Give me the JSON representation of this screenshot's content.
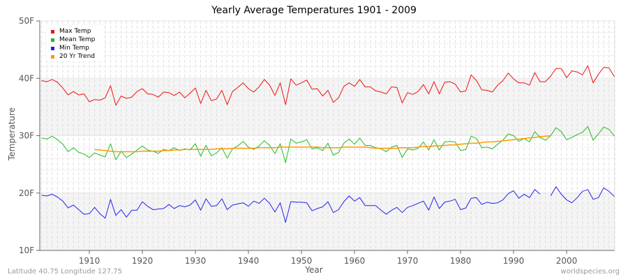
{
  "chart_data": {
    "type": "line",
    "title": "Yearly Average Temperatures 1901 - 2009",
    "xlabel": "Year",
    "ylabel": "Temperature",
    "ylim": [
      10,
      50
    ],
    "xlim": [
      1901,
      2009
    ],
    "y_ticks": [
      "10F",
      "20F",
      "30F",
      "40F",
      "50F"
    ],
    "x_ticks": [
      "1910",
      "1920",
      "1930",
      "1940",
      "1950",
      "1960",
      "1970",
      "1980",
      "1990",
      "2000"
    ],
    "grid": true,
    "legend_position": "top-left",
    "x": [
      1901,
      1902,
      1903,
      1904,
      1905,
      1906,
      1907,
      1908,
      1909,
      1910,
      1911,
      1912,
      1913,
      1914,
      1915,
      1916,
      1917,
      1918,
      1919,
      1920,
      1921,
      1922,
      1923,
      1924,
      1925,
      1926,
      1927,
      1928,
      1929,
      1930,
      1931,
      1932,
      1933,
      1934,
      1935,
      1936,
      1937,
      1938,
      1939,
      1940,
      1941,
      1942,
      1943,
      1944,
      1945,
      1946,
      1947,
      1948,
      1949,
      1950,
      1951,
      1952,
      1953,
      1954,
      1955,
      1956,
      1957,
      1958,
      1959,
      1960,
      1961,
      1962,
      1963,
      1964,
      1965,
      1966,
      1967,
      1968,
      1969,
      1970,
      1971,
      1972,
      1973,
      1974,
      1975,
      1976,
      1977,
      1978,
      1979,
      1980,
      1981,
      1982,
      1983,
      1984,
      1985,
      1986,
      1987,
      1988,
      1989,
      1990,
      1991,
      1992,
      1993,
      1994,
      1995,
      1996,
      1997,
      1998,
      1999,
      2000,
      2001,
      2002,
      2003,
      2004,
      2005,
      2006,
      2007,
      2008,
      2009
    ],
    "series": [
      {
        "name": "Max Temp",
        "color": "#ee1111",
        "values": [
          39.6,
          39.4,
          39.8,
          39.3,
          38.3,
          37.1,
          37.7,
          37.1,
          37.3,
          35.9,
          36.3,
          36.2,
          36.6,
          38.7,
          35.3,
          36.9,
          36.5,
          36.7,
          37.7,
          38.2,
          37.3,
          37.2,
          36.7,
          37.6,
          37.5,
          37.0,
          37.6,
          36.6,
          37.4,
          38.3,
          35.6,
          37.9,
          36.1,
          36.4,
          37.9,
          35.4,
          37.7,
          38.4,
          39.2,
          38.2,
          37.6,
          38.5,
          39.8,
          38.8,
          37.0,
          39.2,
          35.4,
          39.9,
          38.8,
          39.2,
          39.7,
          38.1,
          38.2,
          36.9,
          37.9,
          35.8,
          36.6,
          38.6,
          39.2,
          38.6,
          39.8,
          38.5,
          38.5,
          37.8,
          37.6,
          37.3,
          38.5,
          38.4,
          35.7,
          37.5,
          37.2,
          37.7,
          38.9,
          37.3,
          39.4,
          37.3,
          39.3,
          39.4,
          39.0,
          37.6,
          37.8,
          40.6,
          39.6,
          38.0,
          37.9,
          37.6,
          38.8,
          39.6,
          40.9,
          39.9,
          39.2,
          39.2,
          38.8,
          41.0,
          39.4,
          39.4,
          40.4,
          41.7,
          41.7,
          40.1,
          41.3,
          41.1,
          40.6,
          42.2,
          39.2,
          40.7,
          41.9,
          41.8,
          40.3
        ]
      },
      {
        "name": "Mean Temp",
        "color": "#22bb22",
        "values": [
          29.6,
          29.4,
          29.9,
          29.3,
          28.5,
          27.2,
          27.9,
          27.1,
          26.8,
          26.2,
          27.0,
          26.6,
          26.3,
          28.6,
          25.8,
          27.3,
          26.2,
          26.8,
          27.5,
          28.2,
          27.5,
          27.3,
          26.9,
          27.6,
          27.4,
          27.9,
          27.4,
          27.7,
          27.5,
          28.6,
          26.4,
          28.3,
          26.5,
          27.0,
          27.9,
          26.1,
          27.7,
          28.2,
          29.0,
          28.0,
          27.6,
          28.2,
          29.1,
          28.3,
          26.9,
          28.6,
          25.3,
          29.4,
          28.7,
          28.9,
          29.3,
          27.7,
          27.9,
          27.4,
          28.7,
          26.6,
          27.1,
          28.7,
          29.4,
          28.5,
          29.6,
          28.3,
          28.3,
          27.9,
          27.7,
          27.2,
          28.0,
          28.3,
          26.2,
          27.7,
          27.5,
          27.8,
          28.9,
          27.5,
          29.3,
          27.5,
          28.9,
          29.0,
          28.9,
          27.4,
          27.6,
          29.9,
          29.5,
          27.9,
          28.0,
          27.7,
          28.5,
          29.2,
          30.3,
          30.0,
          29.0,
          29.5,
          28.9,
          30.7,
          29.7,
          29.2,
          30.0,
          31.4,
          30.7,
          29.3,
          29.7,
          30.2,
          30.6,
          31.6,
          29.2,
          30.3,
          31.5,
          31.1,
          29.9
        ]
      },
      {
        "name": "Min Temp",
        "color": "#2222ee",
        "values": [
          19.6,
          19.5,
          19.8,
          19.3,
          18.6,
          17.4,
          17.9,
          17.1,
          16.3,
          16.4,
          17.5,
          16.4,
          15.6,
          18.9,
          16.1,
          17.1,
          15.8,
          17.0,
          17.0,
          18.5,
          17.7,
          17.1,
          17.2,
          17.3,
          18.0,
          17.3,
          17.8,
          17.6,
          17.9,
          18.8,
          17.0,
          19.0,
          17.7,
          17.8,
          19.0,
          17.1,
          17.9,
          18.1,
          18.3,
          17.7,
          18.6,
          18.2,
          19.1,
          18.2,
          16.7,
          18.3,
          14.9,
          18.5,
          18.4,
          18.4,
          18.3,
          16.9,
          17.3,
          17.6,
          18.5,
          16.6,
          17.1,
          18.5,
          19.5,
          18.6,
          19.2,
          17.8,
          17.8,
          17.8,
          17.0,
          16.3,
          17.0,
          17.5,
          16.6,
          17.5,
          17.8,
          18.2,
          18.6,
          17.0,
          19.3,
          17.3,
          18.4,
          18.6,
          18.9,
          17.1,
          17.4,
          19.1,
          19.2,
          18.0,
          18.4,
          18.2,
          18.3,
          18.8,
          19.9,
          20.4,
          19.1,
          19.8,
          19.2,
          20.6,
          19.8,
          null,
          19.5,
          21.1,
          19.8,
          18.8,
          18.3,
          19.2,
          20.3,
          20.6,
          18.9,
          19.2,
          20.9,
          20.3,
          19.4
        ]
      },
      {
        "name": "20 Yr Trend",
        "color": "#ff9900",
        "values": [
          null,
          null,
          null,
          null,
          null,
          null,
          null,
          null,
          null,
          null,
          27.6,
          27.5,
          27.4,
          27.3,
          27.2,
          27.2,
          27.2,
          27.2,
          27.2,
          27.3,
          27.3,
          27.3,
          27.3,
          27.4,
          27.4,
          27.5,
          27.5,
          27.6,
          27.6,
          27.6,
          27.6,
          27.6,
          27.6,
          27.7,
          27.7,
          27.7,
          27.8,
          27.8,
          27.8,
          27.8,
          27.8,
          27.9,
          27.9,
          27.9,
          27.9,
          28.0,
          28.0,
          28.0,
          28.0,
          28.0,
          28.0,
          28.0,
          28.0,
          27.9,
          27.9,
          27.9,
          27.9,
          28.0,
          28.0,
          28.0,
          28.0,
          28.0,
          27.9,
          27.8,
          27.8,
          27.8,
          27.8,
          27.8,
          27.9,
          27.9,
          27.9,
          28.0,
          28.1,
          28.1,
          28.2,
          28.2,
          28.3,
          28.4,
          28.4,
          28.5,
          28.6,
          28.7,
          28.7,
          28.8,
          28.9,
          28.9,
          29.0,
          29.1,
          29.2,
          29.3,
          29.4,
          29.5,
          29.6,
          29.7,
          29.8,
          29.9,
          30.0,
          null,
          null,
          null,
          null,
          null,
          null,
          null,
          null,
          null,
          null,
          null,
          null
        ]
      }
    ]
  },
  "header": {
    "title": "Yearly Average Temperatures 1901 - 2009"
  },
  "axes": {
    "y_ticks": [
      "50F",
      "40F",
      "30F",
      "20F",
      "10F"
    ],
    "x_ticks": [
      "1910",
      "1920",
      "1930",
      "1940",
      "1950",
      "1960",
      "1970",
      "1980",
      "1990",
      "2000"
    ],
    "xlabel": "Year",
    "ylabel": "Temperature"
  },
  "legend": {
    "items": [
      {
        "label": "Max Temp",
        "color": "#ee1111"
      },
      {
        "label": "Mean Temp",
        "color": "#22bb22"
      },
      {
        "label": "Min Temp",
        "color": "#2222ee"
      },
      {
        "label": "20 Yr Trend",
        "color": "#ff9900"
      }
    ]
  },
  "footer": {
    "location": "Latitude 40.75 Longitude 127.75",
    "source": "worldspecies.org"
  }
}
